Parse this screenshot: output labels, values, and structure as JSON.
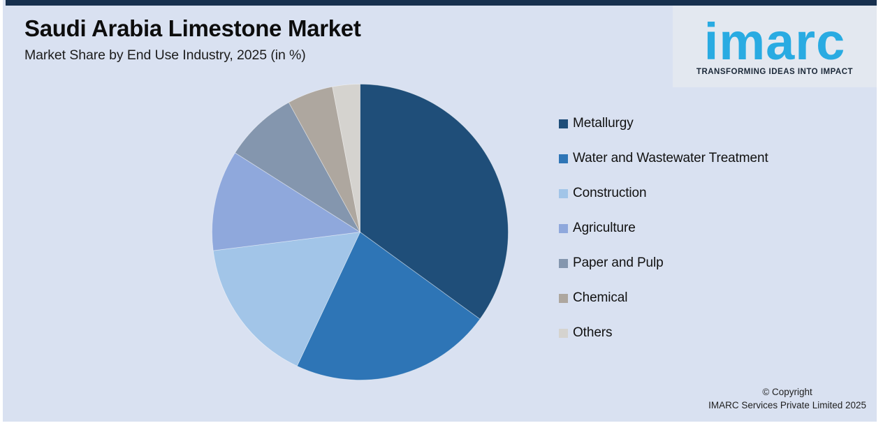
{
  "page": {
    "background": "#ffffff",
    "card_background": "#d9e1f1",
    "accent_bar_color": "#17304e",
    "logo_panel_background": "#e3e8f0"
  },
  "header": {
    "title": "Saudi Arabia Limestone Market",
    "subtitle": "Market Share by End Use Industry, 2025 (in %)"
  },
  "logo": {
    "brand": "imarc",
    "tagline": "TRANSFORMING IDEAS INTO IMPACT",
    "brand_color": "#29abe2",
    "tagline_color": "#1b2838"
  },
  "footer": {
    "line1": "© Copyright",
    "line2": "IMARC Services Private Limited 2025"
  },
  "chart_data": {
    "type": "pie",
    "title": "Saudi Arabia Limestone Market",
    "subtitle": "Market Share by End Use Industry, 2025 (in %)",
    "unit": "%",
    "categories": [
      "Metallurgy",
      "Water and Wastewater Treatment",
      "Construction",
      "Agriculture",
      "Paper and Pulp",
      "Chemical",
      "Others"
    ],
    "values": [
      35,
      22,
      16,
      11,
      8,
      5,
      3
    ],
    "colors": [
      "#1f4e79",
      "#2e75b6",
      "#a2c5e8",
      "#8fa8dc",
      "#8496ae",
      "#aea79f",
      "#d5d3cf"
    ],
    "start_angle_deg": 0,
    "direction": "clockwise",
    "legend_position": "right",
    "data_labels": false
  }
}
